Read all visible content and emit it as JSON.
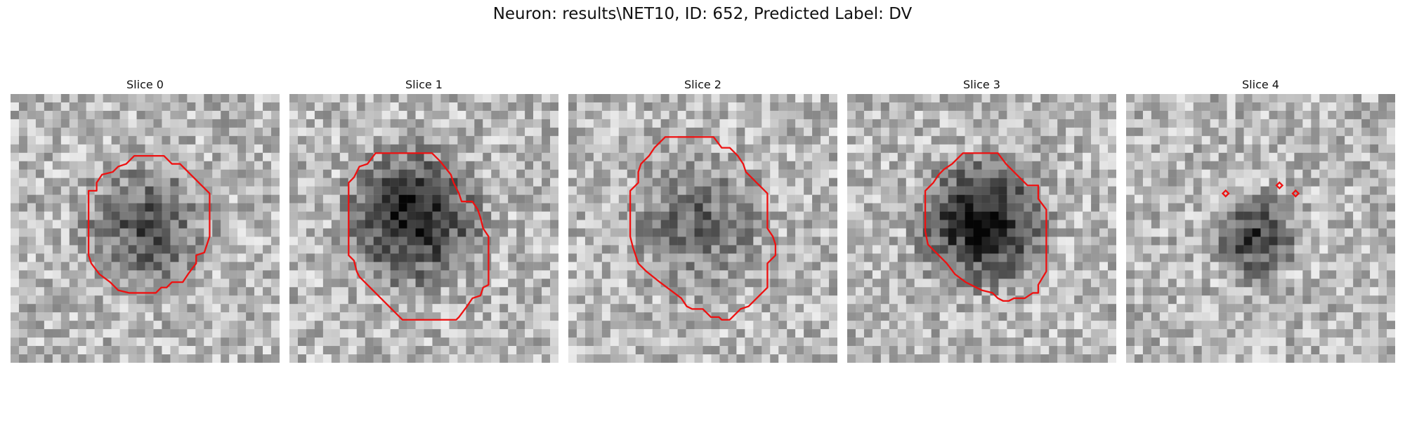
{
  "figure": {
    "title": "Neuron: results\\NET10, ID: 652, Predicted Label: DV"
  },
  "panels": [
    {
      "title": "Slice 0",
      "seed": 11,
      "dark_center": [
        50,
        50
      ],
      "dark_radius": 30,
      "dark_strength": 0.45,
      "contour_color": "#ee1111",
      "contour": [
        [
          46,
          23
        ],
        [
          57,
          23
        ],
        [
          60,
          26
        ],
        [
          63,
          26
        ],
        [
          67,
          30
        ],
        [
          70,
          33
        ],
        [
          74,
          37
        ],
        [
          74,
          53
        ],
        [
          73,
          56
        ],
        [
          72,
          59
        ],
        [
          69,
          60
        ],
        [
          69,
          63
        ],
        [
          66,
          67
        ],
        [
          64,
          70
        ],
        [
          60,
          70
        ],
        [
          58,
          72
        ],
        [
          56,
          72
        ],
        [
          54,
          74
        ],
        [
          44,
          74
        ],
        [
          40,
          73
        ],
        [
          37,
          70
        ],
        [
          33,
          67
        ],
        [
          30,
          63
        ],
        [
          29,
          60
        ],
        [
          29,
          36
        ],
        [
          32,
          36
        ],
        [
          32,
          33
        ],
        [
          34,
          30
        ],
        [
          38,
          29
        ],
        [
          40,
          27
        ],
        [
          43,
          26
        ]
      ],
      "closed": true,
      "markers": []
    },
    {
      "title": "Slice 1",
      "seed": 23,
      "dark_center": [
        46,
        46
      ],
      "dark_radius": 32,
      "dark_strength": 0.7,
      "contour_color": "#ee1111",
      "contour": [
        [
          32,
          22
        ],
        [
          53,
          22
        ],
        [
          56,
          25
        ],
        [
          60,
          30
        ],
        [
          61,
          33
        ],
        [
          63,
          37
        ],
        [
          64,
          40
        ],
        [
          68,
          40
        ],
        [
          70,
          43
        ],
        [
          71,
          46
        ],
        [
          72,
          50
        ],
        [
          74,
          53
        ],
        [
          74,
          71
        ],
        [
          72,
          72
        ],
        [
          71,
          75
        ],
        [
          68,
          76
        ],
        [
          66,
          79
        ],
        [
          63,
          83
        ],
        [
          62,
          84
        ],
        [
          42,
          84
        ],
        [
          38,
          80
        ],
        [
          32,
          74
        ],
        [
          26,
          68
        ],
        [
          25,
          66
        ],
        [
          24,
          62
        ],
        [
          22,
          60
        ],
        [
          22,
          33
        ],
        [
          24,
          31
        ],
        [
          26,
          27
        ],
        [
          29,
          26
        ]
      ],
      "closed": true,
      "markers": []
    },
    {
      "title": "Slice 2",
      "seed": 37,
      "dark_center": [
        48,
        48
      ],
      "dark_radius": 32,
      "dark_strength": 0.35,
      "contour_color": "#ee1111",
      "contour": [
        [
          36,
          16
        ],
        [
          54,
          16
        ],
        [
          57,
          20
        ],
        [
          60,
          20
        ],
        [
          63,
          23
        ],
        [
          65,
          26
        ],
        [
          66,
          29
        ],
        [
          70,
          33
        ],
        [
          74,
          37
        ],
        [
          74,
          50
        ],
        [
          76,
          53
        ],
        [
          77,
          56
        ],
        [
          77,
          60
        ],
        [
          74,
          63
        ],
        [
          74,
          72
        ],
        [
          70,
          76
        ],
        [
          67,
          79
        ],
        [
          64,
          80
        ],
        [
          62,
          82
        ],
        [
          60,
          84
        ],
        [
          57,
          84
        ],
        [
          56,
          83
        ],
        [
          53,
          83
        ],
        [
          50,
          80
        ],
        [
          46,
          80
        ],
        [
          44,
          79
        ],
        [
          42,
          76
        ],
        [
          38,
          73
        ],
        [
          34,
          70
        ],
        [
          29,
          66
        ],
        [
          26,
          63
        ],
        [
          25,
          60
        ],
        [
          24,
          57
        ],
        [
          23,
          53
        ],
        [
          23,
          36
        ],
        [
          26,
          33
        ],
        [
          26,
          29
        ],
        [
          27,
          26
        ],
        [
          30,
          23
        ],
        [
          32,
          20
        ]
      ],
      "closed": true,
      "markers": []
    },
    {
      "title": "Slice 3",
      "seed": 53,
      "dark_center": [
        50,
        48
      ],
      "dark_radius": 30,
      "dark_strength": 0.75,
      "contour_color": "#ee1111",
      "contour": [
        [
          43,
          22
        ],
        [
          56,
          22
        ],
        [
          59,
          26
        ],
        [
          63,
          30
        ],
        [
          67,
          34
        ],
        [
          71,
          34
        ],
        [
          71,
          39
        ],
        [
          74,
          43
        ],
        [
          74,
          66
        ],
        [
          71,
          71
        ],
        [
          71,
          74
        ],
        [
          69,
          74
        ],
        [
          66,
          76
        ],
        [
          62,
          76
        ],
        [
          60,
          77
        ],
        [
          58,
          77
        ],
        [
          56,
          76
        ],
        [
          54,
          74
        ],
        [
          50,
          73
        ],
        [
          44,
          70
        ],
        [
          40,
          67
        ],
        [
          37,
          63
        ],
        [
          34,
          60
        ],
        [
          30,
          56
        ],
        [
          29,
          51
        ],
        [
          29,
          36
        ],
        [
          32,
          33
        ],
        [
          34,
          30
        ],
        [
          36,
          28
        ],
        [
          39,
          26
        ]
      ],
      "closed": true,
      "markers": []
    },
    {
      "title": "Slice 4",
      "seed": 71,
      "dark_center": [
        48,
        53
      ],
      "dark_radius": 20,
      "dark_strength": 0.55,
      "contour_color": "#ee1111",
      "contour": [],
      "closed": false,
      "markers": [
        [
          37,
          37
        ],
        [
          57,
          34
        ],
        [
          63,
          37
        ]
      ]
    }
  ]
}
